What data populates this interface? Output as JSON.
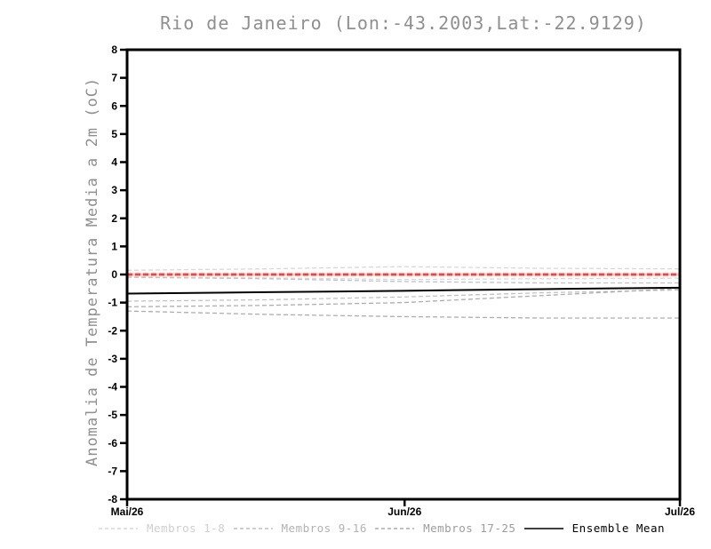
{
  "chart_data": {
    "type": "line",
    "title": "Rio de Janeiro (Lon:-43.2003,Lat:-22.9129)",
    "ylabel": "Anomalia de Temperatura Media a 2m (oC)",
    "xlabel": "",
    "ylim": [
      -8,
      8
    ],
    "yticks": [
      8,
      7,
      6,
      5,
      4,
      3,
      2,
      1,
      0,
      -1,
      -2,
      -3,
      -4,
      -5,
      -6,
      -7,
      -8
    ],
    "xticks": [
      {
        "pos": 0,
        "label": "Mai/26"
      },
      {
        "pos": 0.502,
        "label": "Jun/26"
      },
      {
        "pos": 1,
        "label": "Jul/26"
      }
    ],
    "x": [
      0,
      0.25,
      0.5,
      0.75,
      1
    ],
    "grid": false,
    "legend_position": "bottom",
    "reference_line": {
      "value": 0,
      "color": "#f8423a",
      "underlay_color": "#ffc2bc",
      "style": "dashed"
    },
    "series": [
      {
        "name": "Membros 1-8 (trace a)",
        "group": "Membros 1-8",
        "color": "#d8d8d8",
        "style": "dashed",
        "values": [
          0.15,
          0.2,
          0.28,
          0.22,
          0.2
        ]
      },
      {
        "name": "Membros 1-8 (trace b)",
        "group": "Membros 1-8",
        "color": "#d8d8d8",
        "style": "dashed",
        "values": [
          -0.08,
          -0.12,
          -0.18,
          -0.15,
          -0.13
        ]
      },
      {
        "name": "Membros 9-16 (trace a)",
        "group": "Membros 9-16",
        "color": "#c2c2c2",
        "style": "dashed",
        "values": [
          -0.1,
          -0.15,
          -0.25,
          -0.3,
          -0.3
        ]
      },
      {
        "name": "Membros 9-16 (trace b)",
        "group": "Membros 9-16",
        "color": "#c2c2c2",
        "style": "dashed",
        "values": [
          -0.95,
          -0.9,
          -0.8,
          -0.65,
          -0.55
        ]
      },
      {
        "name": "Membros 17-25 (trace a)",
        "group": "Membros 17-25",
        "color": "#adadad",
        "style": "dashed",
        "values": [
          -1.15,
          -1.1,
          -1.0,
          -0.75,
          -0.5
        ]
      },
      {
        "name": "Membros 17-25 (trace b)",
        "group": "Membros 17-25",
        "color": "#adadad",
        "style": "dashed",
        "values": [
          -1.3,
          -1.42,
          -1.5,
          -1.55,
          -1.55
        ]
      },
      {
        "name": "Ensemble Mean",
        "group": "Ensemble Mean",
        "color": "#000000",
        "style": "solid",
        "values": [
          -0.68,
          -0.63,
          -0.58,
          -0.52,
          -0.47
        ]
      }
    ]
  },
  "legend": {
    "items": [
      {
        "label": "Membros 1-8",
        "color": "#cfcfcf",
        "line": "dashed"
      },
      {
        "label": "Membros 9-16",
        "color": "#b2b2b2",
        "line": "dashed"
      },
      {
        "label": "Membros 17-25",
        "color": "#9c9c9c",
        "line": "dashed"
      },
      {
        "label": "Ensemble Mean",
        "color": "#000000",
        "line": "solid"
      }
    ]
  }
}
